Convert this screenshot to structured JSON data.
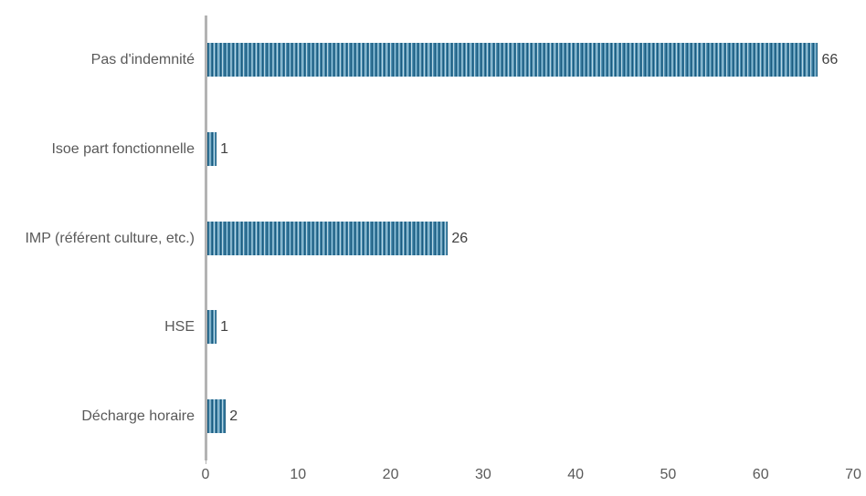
{
  "chart_data": {
    "type": "bar",
    "orientation": "horizontal",
    "title": "",
    "xlabel": "",
    "ylabel": "",
    "categories": [
      "Pas d'indemnité",
      "Isoe part fonctionnelle",
      "IMP (référent culture, etc.)",
      "HSE",
      "Décharge horaire"
    ],
    "values": [
      66,
      1,
      26,
      1,
      2
    ],
    "value_labels": [
      "66",
      "1",
      "26",
      "1",
      "2"
    ],
    "xlim": [
      0,
      70
    ],
    "x_ticks": [
      "0",
      "10",
      "20",
      "30",
      "40",
      "50",
      "60",
      "70"
    ],
    "grid": false,
    "legend": false,
    "bar_pattern": "vertical-stripes",
    "colors": {
      "bar_stripe_dark": "#1a5a7d",
      "bar_stripe_mid": "#5494b6",
      "bar_stripe_light": "#b9d6e3",
      "axis_line": "#b3b3b3",
      "tick_label": "#595959",
      "category_label": "#595959",
      "value_label": "#404040",
      "background": "#ffffff"
    }
  }
}
